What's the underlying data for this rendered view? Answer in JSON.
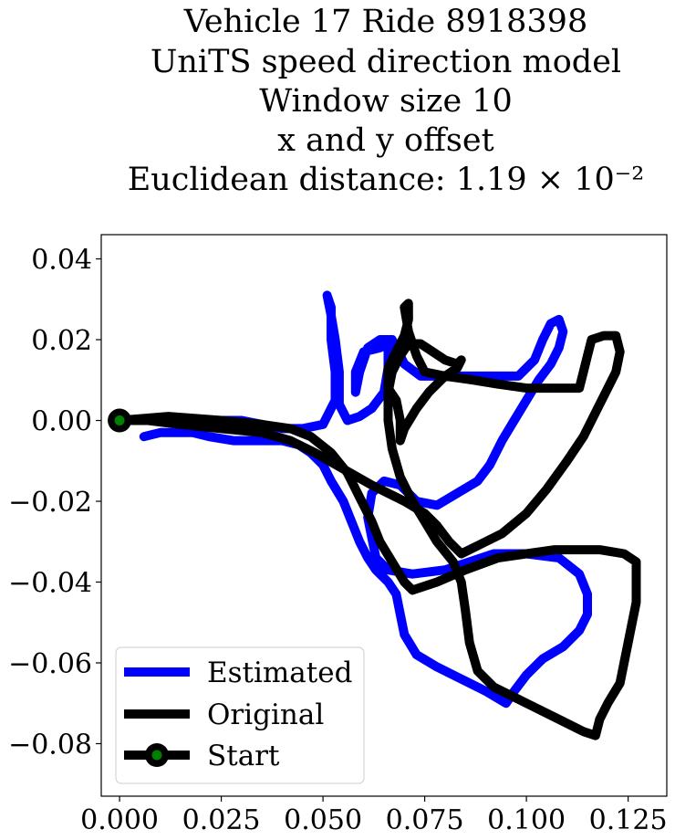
{
  "chart_data": {
    "type": "line",
    "title_lines": [
      "Vehicle 17 Ride 8918398",
      "UniTS speed direction model",
      "Window size 10",
      "x and y offset",
      "Euclidean distance: 1.19 × 10⁻²"
    ],
    "xlabel": "",
    "ylabel": "",
    "xlim": [
      -0.0045,
      0.1345
    ],
    "ylim": [
      -0.093,
      0.046
    ],
    "x_ticks": [
      0.0,
      0.025,
      0.05,
      0.075,
      0.1,
      0.125
    ],
    "x_tick_labels": [
      "0.000",
      "0.025",
      "0.050",
      "0.075",
      "0.100",
      "0.125"
    ],
    "y_ticks": [
      0.04,
      0.02,
      0.0,
      -0.02,
      -0.04,
      -0.06,
      -0.08
    ],
    "y_tick_labels": [
      "0.04",
      "0.02",
      "0.00",
      "−0.02",
      "−0.04",
      "−0.06",
      "−0.08"
    ],
    "grid": false,
    "legend_position": "lower-left",
    "series": [
      {
        "name": "Estimated",
        "color": "#0000ff",
        "points": [
          [
            0.006,
            -0.004
          ],
          [
            0.01,
            -0.003
          ],
          [
            0.018,
            -0.003
          ],
          [
            0.022,
            -0.004
          ],
          [
            0.028,
            -0.005
          ],
          [
            0.034,
            -0.005
          ],
          [
            0.04,
            -0.005
          ],
          [
            0.044,
            -0.006
          ],
          [
            0.047,
            -0.008
          ],
          [
            0.05,
            -0.011
          ],
          [
            0.052,
            -0.015
          ],
          [
            0.055,
            -0.02
          ],
          [
            0.057,
            -0.025
          ],
          [
            0.059,
            -0.03
          ],
          [
            0.061,
            -0.034
          ],
          [
            0.063,
            -0.037
          ],
          [
            0.066,
            -0.04
          ],
          [
            0.068,
            -0.043
          ],
          [
            0.069,
            -0.048
          ],
          [
            0.07,
            -0.053
          ],
          [
            0.073,
            -0.058
          ],
          [
            0.078,
            -0.061
          ],
          [
            0.084,
            -0.064
          ],
          [
            0.09,
            -0.067
          ],
          [
            0.095,
            -0.07
          ],
          [
            0.097,
            -0.067
          ],
          [
            0.1,
            -0.063
          ],
          [
            0.104,
            -0.059
          ],
          [
            0.109,
            -0.056
          ],
          [
            0.113,
            -0.052
          ],
          [
            0.115,
            -0.048
          ],
          [
            0.115,
            -0.043
          ],
          [
            0.113,
            -0.038
          ],
          [
            0.108,
            -0.034
          ],
          [
            0.1,
            -0.033
          ],
          [
            0.092,
            -0.033
          ],
          [
            0.086,
            -0.035
          ],
          [
            0.08,
            -0.037
          ],
          [
            0.072,
            -0.038
          ],
          [
            0.066,
            -0.037
          ],
          [
            0.063,
            -0.034
          ],
          [
            0.062,
            -0.029
          ],
          [
            0.061,
            -0.024
          ],
          [
            0.062,
            -0.018
          ],
          [
            0.065,
            -0.015
          ],
          [
            0.069,
            -0.016
          ],
          [
            0.073,
            -0.02
          ],
          [
            0.078,
            -0.021
          ],
          [
            0.083,
            -0.018
          ],
          [
            0.088,
            -0.015
          ],
          [
            0.091,
            -0.011
          ],
          [
            0.094,
            -0.005
          ],
          [
            0.097,
            0.0
          ],
          [
            0.1,
            0.005
          ],
          [
            0.103,
            0.01
          ],
          [
            0.106,
            0.014
          ],
          [
            0.108,
            0.018
          ],
          [
            0.109,
            0.022
          ],
          [
            0.108,
            0.025
          ],
          [
            0.106,
            0.024
          ],
          [
            0.104,
            0.02
          ],
          [
            0.102,
            0.015
          ],
          [
            0.098,
            0.011
          ],
          [
            0.092,
            0.011
          ],
          [
            0.086,
            0.011
          ],
          [
            0.08,
            0.011
          ],
          [
            0.074,
            0.011
          ],
          [
            0.07,
            0.014
          ],
          [
            0.068,
            0.018
          ],
          [
            0.067,
            0.02
          ],
          [
            0.064,
            0.02
          ],
          [
            0.061,
            0.018
          ],
          [
            0.059,
            0.012
          ],
          [
            0.058,
            0.007
          ],
          [
            0.058,
            0.012
          ],
          [
            0.06,
            0.017
          ],
          [
            0.064,
            0.018
          ],
          [
            0.066,
            0.019
          ],
          [
            0.066,
            0.013
          ],
          [
            0.065,
            0.007
          ],
          [
            0.062,
            0.003
          ],
          [
            0.059,
            0.001
          ],
          [
            0.056,
            0.0
          ],
          [
            0.054,
            0.004
          ],
          [
            0.054,
            0.012
          ],
          [
            0.053,
            0.02
          ],
          [
            0.052,
            0.026
          ],
          [
            0.051,
            0.031
          ],
          [
            0.052,
            0.028
          ],
          [
            0.052,
            0.02
          ],
          [
            0.053,
            0.012
          ],
          [
            0.053,
            0.005
          ],
          [
            0.05,
            -0.001
          ],
          [
            0.045,
            -0.002
          ],
          [
            0.04,
            -0.002
          ],
          [
            0.035,
            -0.001
          ],
          [
            0.03,
            0.0
          ],
          [
            0.025,
            0.0
          ]
        ]
      },
      {
        "name": "Original",
        "color": "#000000",
        "points": [
          [
            0.0,
            0.0
          ],
          [
            0.012,
            0.001
          ],
          [
            0.025,
            0.0
          ],
          [
            0.035,
            -0.001
          ],
          [
            0.042,
            -0.002
          ],
          [
            0.047,
            -0.004
          ],
          [
            0.052,
            -0.008
          ],
          [
            0.056,
            -0.013
          ],
          [
            0.059,
            -0.019
          ],
          [
            0.062,
            -0.025
          ],
          [
            0.064,
            -0.03
          ],
          [
            0.067,
            -0.035
          ],
          [
            0.07,
            -0.04
          ],
          [
            0.072,
            -0.042
          ],
          [
            0.078,
            -0.04
          ],
          [
            0.085,
            -0.037
          ],
          [
            0.093,
            -0.034
          ],
          [
            0.1,
            -0.033
          ],
          [
            0.107,
            -0.032
          ],
          [
            0.112,
            -0.032
          ],
          [
            0.118,
            -0.032
          ],
          [
            0.124,
            -0.033
          ],
          [
            0.127,
            -0.035
          ],
          [
            0.127,
            -0.04
          ],
          [
            0.127,
            -0.045
          ],
          [
            0.125,
            -0.055
          ],
          [
            0.123,
            -0.065
          ],
          [
            0.12,
            -0.07
          ],
          [
            0.118,
            -0.074
          ],
          [
            0.117,
            -0.078
          ],
          [
            0.114,
            -0.077
          ],
          [
            0.108,
            -0.074
          ],
          [
            0.1,
            -0.07
          ],
          [
            0.092,
            -0.066
          ],
          [
            0.088,
            -0.062
          ],
          [
            0.086,
            -0.055
          ],
          [
            0.085,
            -0.047
          ],
          [
            0.084,
            -0.04
          ],
          [
            0.082,
            -0.035
          ],
          [
            0.078,
            -0.03
          ],
          [
            0.075,
            -0.025
          ],
          [
            0.072,
            -0.02
          ],
          [
            0.069,
            -0.014
          ],
          [
            0.067,
            -0.007
          ],
          [
            0.066,
            0.0
          ],
          [
            0.066,
            0.007
          ],
          [
            0.067,
            0.012
          ],
          [
            0.069,
            0.016
          ],
          [
            0.071,
            0.019
          ],
          [
            0.074,
            0.019
          ],
          [
            0.077,
            0.017
          ],
          [
            0.08,
            0.015
          ],
          [
            0.083,
            0.014
          ],
          [
            0.084,
            0.015
          ],
          [
            0.083,
            0.013
          ],
          [
            0.08,
            0.011
          ],
          [
            0.076,
            0.007
          ],
          [
            0.073,
            0.003
          ],
          [
            0.07,
            -0.002
          ],
          [
            0.069,
            -0.005
          ],
          [
            0.069,
            0.0
          ],
          [
            0.068,
            0.005
          ],
          [
            0.066,
            0.008
          ],
          [
            0.066,
            0.013
          ],
          [
            0.068,
            0.017
          ],
          [
            0.07,
            0.021
          ],
          [
            0.071,
            0.025
          ],
          [
            0.071,
            0.029
          ],
          [
            0.07,
            0.028
          ],
          [
            0.071,
            0.022
          ],
          [
            0.073,
            0.016
          ],
          [
            0.075,
            0.012
          ],
          [
            0.08,
            0.011
          ],
          [
            0.087,
            0.01
          ],
          [
            0.093,
            0.009
          ],
          [
            0.1,
            0.008
          ],
          [
            0.107,
            0.008
          ],
          [
            0.113,
            0.008
          ],
          [
            0.114,
            0.012
          ],
          [
            0.115,
            0.016
          ],
          [
            0.116,
            0.02
          ],
          [
            0.119,
            0.021
          ],
          [
            0.122,
            0.021
          ],
          [
            0.123,
            0.017
          ],
          [
            0.122,
            0.012
          ],
          [
            0.12,
            0.008
          ],
          [
            0.117,
            0.002
          ],
          [
            0.114,
            -0.004
          ],
          [
            0.11,
            -0.01
          ],
          [
            0.105,
            -0.017
          ],
          [
            0.1,
            -0.023
          ],
          [
            0.094,
            -0.028
          ],
          [
            0.088,
            -0.031
          ],
          [
            0.084,
            -0.033
          ],
          [
            0.081,
            -0.03
          ],
          [
            0.078,
            -0.026
          ],
          [
            0.075,
            -0.023
          ],
          [
            0.07,
            -0.02
          ],
          [
            0.062,
            -0.016
          ],
          [
            0.055,
            -0.012
          ],
          [
            0.048,
            -0.008
          ],
          [
            0.042,
            -0.005
          ],
          [
            0.035,
            -0.003
          ],
          [
            0.025,
            -0.002
          ],
          [
            0.015,
            -0.001
          ],
          [
            0.007,
            0.0
          ],
          [
            0.0,
            0.0
          ]
        ]
      },
      {
        "name": "Start",
        "color": "#008000",
        "marker_edge_color": "#000000",
        "points": [
          [
            0.0,
            0.0
          ]
        ]
      }
    ]
  }
}
